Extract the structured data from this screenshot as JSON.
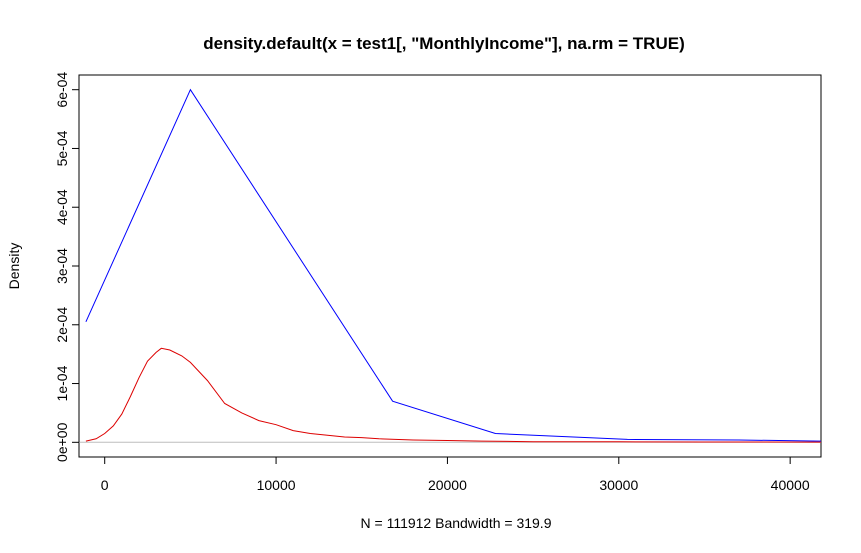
{
  "chart_data": {
    "type": "line",
    "title": "density.default(x = test1[, \"MonthlyIncome\"], na.rm = TRUE)",
    "xlabel": "N = 111912   Bandwidth = 319.9",
    "ylabel": "Density",
    "xlim": [
      -1500,
      41800
    ],
    "ylim": [
      -2.5e-05,
      0.000625
    ],
    "x_ticks": [
      {
        "value": 0,
        "label": "0"
      },
      {
        "value": 10000,
        "label": "10000"
      },
      {
        "value": 20000,
        "label": "20000"
      },
      {
        "value": 30000,
        "label": "30000"
      },
      {
        "value": 40000,
        "label": "40000"
      }
    ],
    "y_ticks": [
      {
        "value": 0,
        "label": "0e+00"
      },
      {
        "value": 0.0001,
        "label": "1e-04"
      },
      {
        "value": 0.0002,
        "label": "2e-04"
      },
      {
        "value": 0.0003,
        "label": "3e-04"
      },
      {
        "value": 0.0004,
        "label": "4e-04"
      },
      {
        "value": 0.0005,
        "label": "5e-04"
      },
      {
        "value": 0.0006,
        "label": "6e-04"
      }
    ],
    "baseline": {
      "value": 0,
      "color": "#bebebe"
    },
    "series": [
      {
        "color": "#0000ff",
        "x": [
          -1100,
          5000,
          16800,
          22800,
          30500,
          37000,
          41800
        ],
        "y": [
          0.000205,
          0.0006,
          7e-05,
          1.5e-05,
          5e-06,
          4e-06,
          2e-06
        ]
      },
      {
        "color": "#dd0000",
        "x": [
          -1100,
          -500,
          0,
          500,
          1000,
          1500,
          2000,
          2500,
          3000,
          3300,
          3800,
          4500,
          5000,
          6000,
          7000,
          8000,
          9000,
          10000,
          11000,
          12000,
          13000,
          14000,
          15000,
          16000,
          18000,
          20000,
          22000,
          25000,
          30000,
          35000,
          41800
        ],
        "y": [
          2e-06,
          6e-06,
          1.5e-05,
          2.8e-05,
          4.8e-05,
          7.8e-05,
          0.00011,
          0.000138,
          0.000153,
          0.00016,
          0.000157,
          0.000147,
          0.000136,
          0.000105,
          6.6e-05,
          5e-05,
          3.7e-05,
          3e-05,
          2e-05,
          1.5e-05,
          1.2e-05,
          9e-06,
          8e-06,
          6e-06,
          4e-06,
          3e-06,
          2e-06,
          1e-06,
          8e-07,
          5e-07,
          3e-07
        ]
      }
    ]
  }
}
